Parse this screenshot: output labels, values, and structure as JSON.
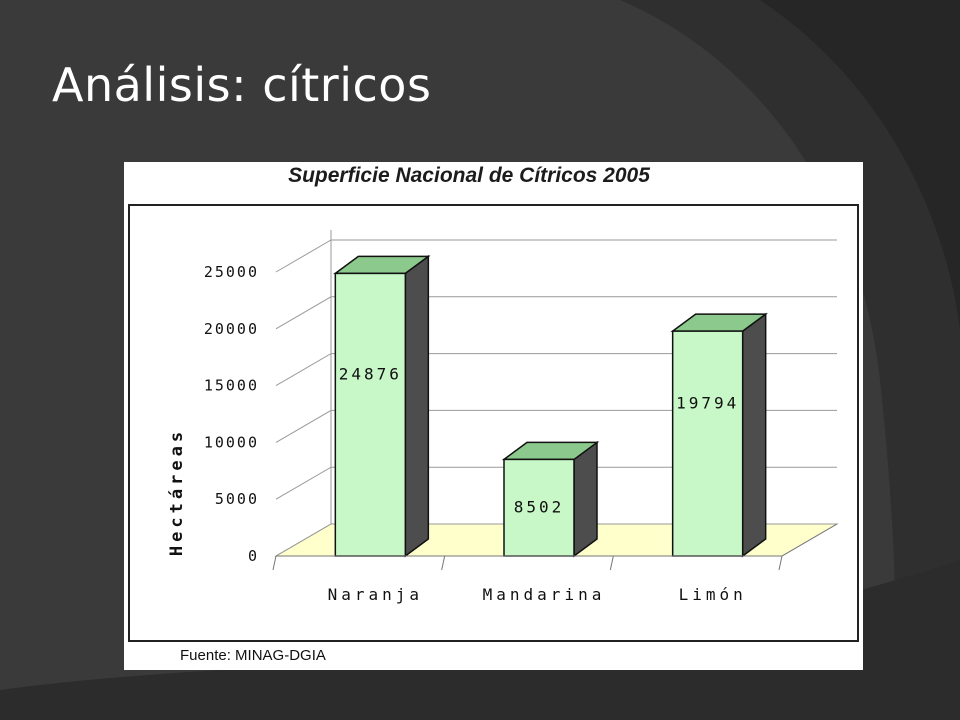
{
  "slide": {
    "title": "Análisis: cítricos"
  },
  "colors": {
    "slide_bg": "#3a3a3a",
    "bar_front": "#c8f7c8",
    "bar_top": "#8cc98c",
    "bar_side": "#4d4d4d",
    "floor": "#ffffcc"
  },
  "chart_data": {
    "type": "bar",
    "title": "Superficie Nacional de Cítricos 2005",
    "ylabel": "Hectáreas",
    "xlabel": "",
    "categories": [
      "Naranja",
      "Mandarina",
      "Limón"
    ],
    "values": [
      24876,
      8502,
      19794
    ],
    "value_labels": [
      "24876",
      "8502",
      "19794"
    ],
    "y_ticks": [
      "0",
      "5000",
      "10000",
      "15000",
      "20000",
      "25000"
    ],
    "ylim": [
      0,
      25000
    ],
    "grid": true,
    "legend": "none",
    "style": "3d",
    "source": "Fuente: MINAG-DGIA"
  }
}
